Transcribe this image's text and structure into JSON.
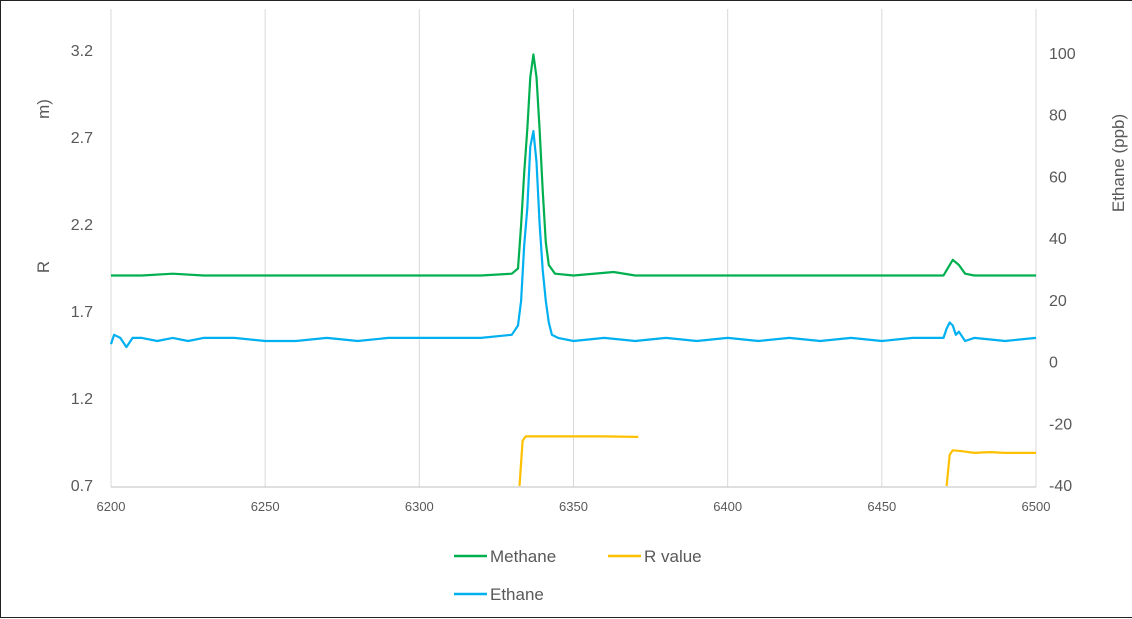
{
  "chart_data": {
    "type": "line",
    "title": "",
    "xlabel": "",
    "ylabel_left_partial": [
      "R",
      "m)"
    ],
    "ylabel_right": "Ethane (ppb)",
    "xlim": [
      6200,
      6500
    ],
    "ylim_left": [
      0.7,
      3.2
    ],
    "ylim_right": [
      -40,
      100
    ],
    "x_ticks": [
      "6200",
      "6250",
      "6300",
      "6350",
      "6400",
      "6450",
      "6500"
    ],
    "y_left_ticks": [
      "3.2",
      "2.7",
      "2.2",
      "1.7",
      "1.2",
      "0.7"
    ],
    "y_right_ticks": [
      "100",
      "80",
      "60",
      "40",
      "20",
      "0",
      "-20",
      "-40"
    ],
    "grid": "vertical",
    "legend_position": "bottom",
    "series": [
      {
        "name": "Methane",
        "axis": "left",
        "color": "#00B050",
        "points": [
          [
            6200,
            1.91
          ],
          [
            6210,
            1.91
          ],
          [
            6220,
            1.92
          ],
          [
            6230,
            1.91
          ],
          [
            6250,
            1.91
          ],
          [
            6280,
            1.91
          ],
          [
            6300,
            1.91
          ],
          [
            6320,
            1.91
          ],
          [
            6330,
            1.92
          ],
          [
            6332,
            1.95
          ],
          [
            6333,
            2.2
          ],
          [
            6334,
            2.5
          ],
          [
            6335,
            2.75
          ],
          [
            6336,
            3.05
          ],
          [
            6337,
            3.18
          ],
          [
            6338,
            3.05
          ],
          [
            6339,
            2.75
          ],
          [
            6340,
            2.4
          ],
          [
            6341,
            2.1
          ],
          [
            6342,
            1.97
          ],
          [
            6344,
            1.92
          ],
          [
            6350,
            1.91
          ],
          [
            6363,
            1.93
          ],
          [
            6370,
            1.91
          ],
          [
            6400,
            1.91
          ],
          [
            6430,
            1.91
          ],
          [
            6460,
            1.91
          ],
          [
            6470,
            1.91
          ],
          [
            6471,
            1.94
          ],
          [
            6473,
            2.0
          ],
          [
            6475,
            1.97
          ],
          [
            6477,
            1.92
          ],
          [
            6480,
            1.91
          ],
          [
            6500,
            1.91
          ]
        ]
      },
      {
        "name": "Ethane",
        "axis": "right",
        "color": "#00B0F0",
        "points": [
          [
            6200,
            6
          ],
          [
            6201,
            9
          ],
          [
            6203,
            8
          ],
          [
            6205,
            5
          ],
          [
            6207,
            8
          ],
          [
            6210,
            8
          ],
          [
            6215,
            7
          ],
          [
            6220,
            8
          ],
          [
            6225,
            7
          ],
          [
            6230,
            8
          ],
          [
            6240,
            8
          ],
          [
            6250,
            7
          ],
          [
            6260,
            7
          ],
          [
            6270,
            8
          ],
          [
            6280,
            7
          ],
          [
            6290,
            8
          ],
          [
            6300,
            8
          ],
          [
            6310,
            8
          ],
          [
            6320,
            8
          ],
          [
            6330,
            9
          ],
          [
            6332,
            12
          ],
          [
            6333,
            20
          ],
          [
            6334,
            38
          ],
          [
            6335,
            50
          ],
          [
            6336,
            70
          ],
          [
            6337,
            75
          ],
          [
            6338,
            65
          ],
          [
            6339,
            45
          ],
          [
            6340,
            30
          ],
          [
            6341,
            20
          ],
          [
            6342,
            13
          ],
          [
            6343,
            9
          ],
          [
            6345,
            8
          ],
          [
            6350,
            7
          ],
          [
            6360,
            8
          ],
          [
            6370,
            7
          ],
          [
            6380,
            8
          ],
          [
            6390,
            7
          ],
          [
            6400,
            8
          ],
          [
            6410,
            7
          ],
          [
            6420,
            8
          ],
          [
            6430,
            7
          ],
          [
            6440,
            8
          ],
          [
            6450,
            7
          ],
          [
            6460,
            8
          ],
          [
            6470,
            8
          ],
          [
            6471,
            11
          ],
          [
            6472,
            13
          ],
          [
            6473,
            12
          ],
          [
            6474,
            9
          ],
          [
            6475,
            10
          ],
          [
            6477,
            7
          ],
          [
            6480,
            8
          ],
          [
            6490,
            7
          ],
          [
            6500,
            8
          ]
        ]
      },
      {
        "name": "R value",
        "axis": "left",
        "color": "#FFC000",
        "segments": [
          [
            [
              6332.5,
              0.7
            ],
            [
              6333.5,
              0.96
            ],
            [
              6334.5,
              0.985
            ],
            [
              6340,
              0.985
            ],
            [
              6360,
              0.985
            ],
            [
              6371,
              0.982
            ]
          ],
          [
            [
              6471,
              0.7
            ],
            [
              6472,
              0.88
            ],
            [
              6473,
              0.905
            ],
            [
              6476,
              0.9
            ],
            [
              6480,
              0.89
            ],
            [
              6485,
              0.895
            ],
            [
              6490,
              0.89
            ],
            [
              6500,
              0.89
            ]
          ]
        ]
      }
    ],
    "legend": [
      {
        "name": "Methane",
        "color": "#00B050"
      },
      {
        "name": "R value",
        "color": "#FFC000"
      },
      {
        "name": "Ethane",
        "color": "#00B0F0"
      }
    ]
  }
}
